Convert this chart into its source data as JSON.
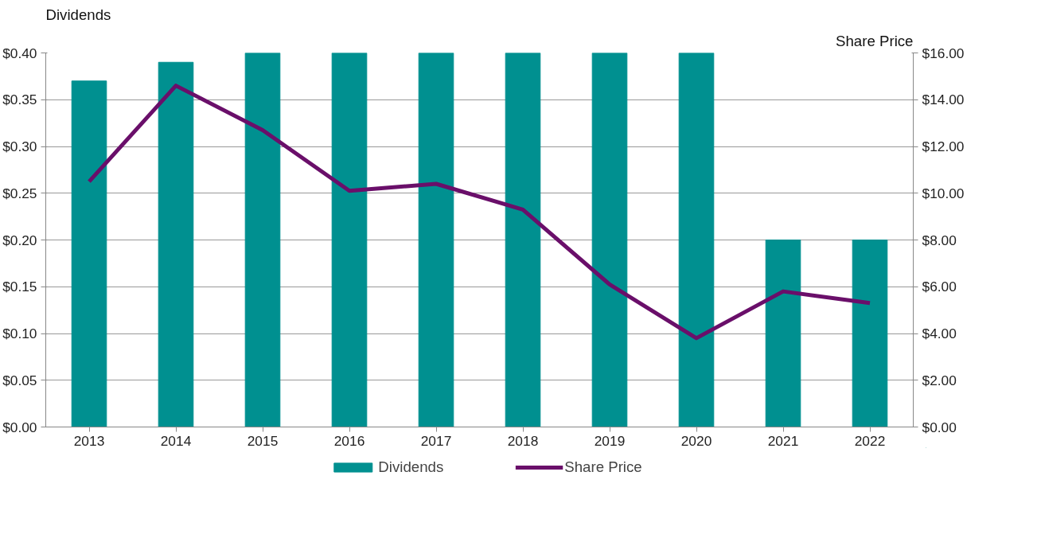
{
  "chart_data": {
    "type": "bar",
    "categories": [
      "2013",
      "2014",
      "2015",
      "2016",
      "2017",
      "2018",
      "2019",
      "2020",
      "2021",
      "2022"
    ],
    "ylabel": "Dividends",
    "y2label": "Share Price",
    "series": [
      {
        "name": "Dividends",
        "type": "bar",
        "color": "#009090",
        "values": [
          0.37,
          0.39,
          0.4,
          0.4,
          0.4,
          0.4,
          0.4,
          0.4,
          0.2,
          0.2
        ]
      },
      {
        "name": "Share Price",
        "type": "line",
        "axis": "y2",
        "color": "#6a0f6a",
        "values": [
          10.5,
          14.6,
          12.7,
          10.1,
          10.4,
          9.3,
          6.1,
          3.8,
          5.8,
          5.3
        ]
      }
    ],
    "ylim": [
      0,
      0.4
    ],
    "yticks": [
      {
        "value": 0,
        "label": "$0.00"
      },
      {
        "value": 0.05,
        "label": "$0.05"
      },
      {
        "value": 0.1,
        "label": "$0.10"
      },
      {
        "value": 0.15,
        "label": "$0.15"
      },
      {
        "value": 0.2,
        "label": "$0.20"
      },
      {
        "value": 0.25,
        "label": "$0.25"
      },
      {
        "value": 0.3,
        "label": "$0.30"
      },
      {
        "value": 0.35,
        "label": "$0.35"
      },
      {
        "value": 0.4,
        "label": "$0.40"
      }
    ],
    "y2lim": [
      0,
      16
    ],
    "y2ticks": [
      {
        "value": 0,
        "label": "$0.00"
      },
      {
        "value": 2,
        "label": "$2.00"
      },
      {
        "value": 4,
        "label": "$4.00"
      },
      {
        "value": 6,
        "label": "$6.00"
      },
      {
        "value": 8,
        "label": "$8.00"
      },
      {
        "value": 10,
        "label": "$10.00"
      },
      {
        "value": 12,
        "label": "$12.00"
      },
      {
        "value": 14,
        "label": "$14.00"
      },
      {
        "value": 16,
        "label": "$16.00"
      }
    ],
    "grid": "y",
    "legend": "bottom",
    "line_style": "solid",
    "marker": "none"
  }
}
